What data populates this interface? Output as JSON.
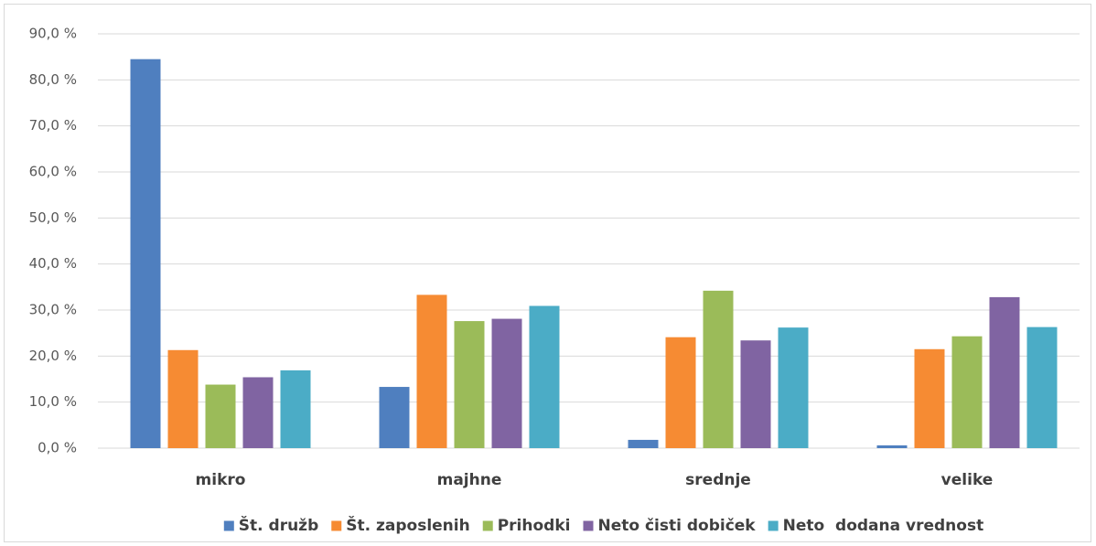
{
  "chart_data": {
    "type": "bar",
    "categories": [
      "mikro",
      "majhne",
      "srednje",
      "velike"
    ],
    "series": [
      {
        "name": "Št. družb",
        "color": "#4f7fbf",
        "values": [
          84.5,
          13.3,
          1.8,
          0.6
        ]
      },
      {
        "name": "Št. zaposlenih",
        "color": "#f68b33",
        "values": [
          21.3,
          33.3,
          24.1,
          21.5
        ]
      },
      {
        "name": "Prihodki",
        "color": "#9bbb59",
        "values": [
          13.8,
          27.6,
          34.2,
          24.3
        ]
      },
      {
        "name": "Neto čisti dobiček",
        "color": "#8064a2",
        "values": [
          15.4,
          28.1,
          23.4,
          32.8
        ]
      },
      {
        "name": "Neto  dodana vrednost",
        "color": "#4bacc6",
        "values": [
          16.9,
          30.9,
          26.2,
          26.3
        ]
      }
    ],
    "ylim": [
      0,
      90
    ],
    "yticks": [
      {
        "value": 0,
        "label": "0,0 %"
      },
      {
        "value": 10,
        "label": "10,0 %"
      },
      {
        "value": 20,
        "label": "20,0 %"
      },
      {
        "value": 30,
        "label": "30,0 %"
      },
      {
        "value": 40,
        "label": "40,0 %"
      },
      {
        "value": 50,
        "label": "50,0 %"
      },
      {
        "value": 60,
        "label": "60,0 %"
      },
      {
        "value": 70,
        "label": "70,0 %"
      },
      {
        "value": 80,
        "label": "80,0 %"
      },
      {
        "value": 90,
        "label": "90,0 %"
      }
    ],
    "grid": true,
    "legend": "bottom"
  }
}
